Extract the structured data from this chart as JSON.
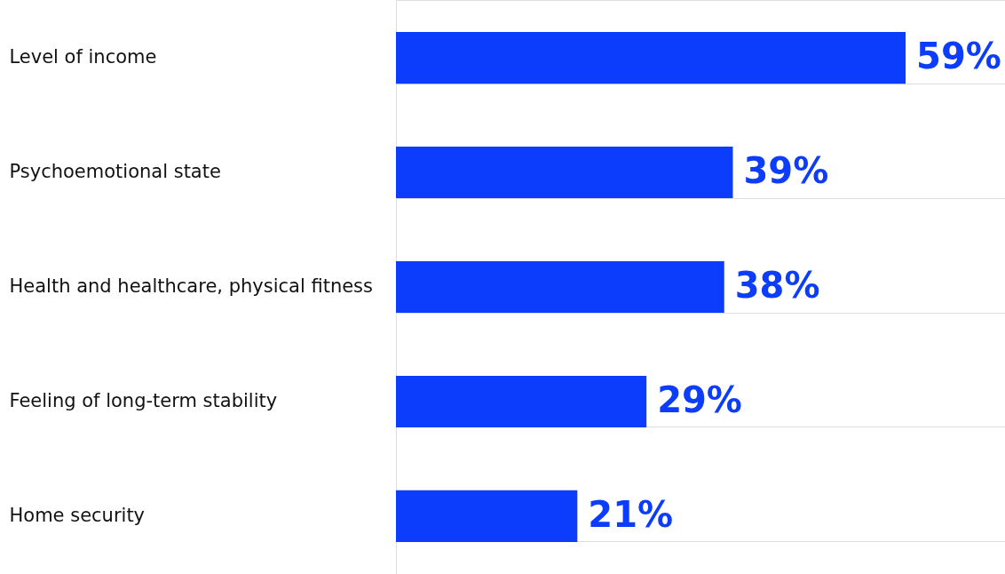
{
  "chart_data": {
    "type": "bar",
    "orientation": "horizontal",
    "categories": [
      "Level of income",
      "Psychoemotional state",
      "Health and healthcare, physical fitness",
      "Feeling of long-term stability",
      "Home security"
    ],
    "values": [
      59,
      39,
      38,
      29,
      21
    ],
    "value_labels": [
      "59%",
      "39%",
      "38%",
      "29%",
      "21%"
    ],
    "color": "#0d3dfc",
    "grid": "y"
  }
}
